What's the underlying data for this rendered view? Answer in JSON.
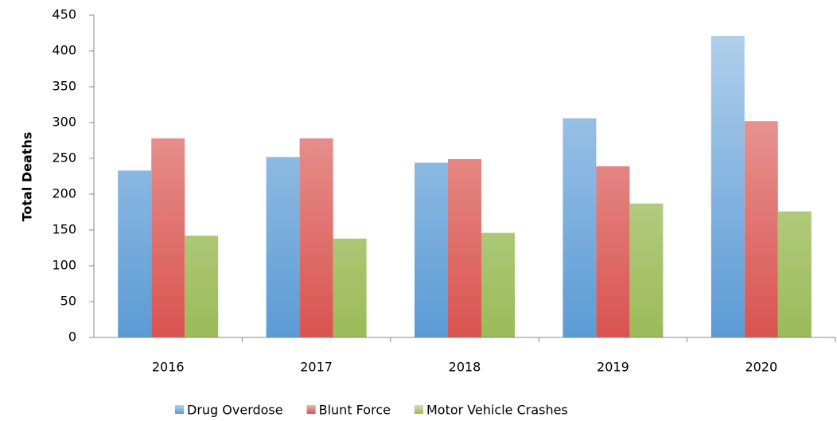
{
  "chart_data": {
    "type": "bar",
    "y_label": "Total Deaths",
    "categories": [
      "2016",
      "2017",
      "2018",
      "2019",
      "2020"
    ],
    "series": [
      {
        "name": "Drug Overdose",
        "color": "#5b9bd5",
        "values": [
          233,
          252,
          244,
          306,
          421
        ]
      },
      {
        "name": "Blunt Force",
        "color": "#d9534f",
        "values": [
          278,
          278,
          249,
          239,
          302
        ]
      },
      {
        "name": "Motor Vehicle Crashes",
        "color": "#9bbb59",
        "values": [
          142,
          138,
          146,
          187,
          176
        ]
      }
    ],
    "ylim": [
      0,
      450
    ],
    "yticks": [
      0,
      50,
      100,
      150,
      200,
      250,
      300,
      350,
      400,
      450
    ],
    "grid": false,
    "legend": "bottom"
  }
}
